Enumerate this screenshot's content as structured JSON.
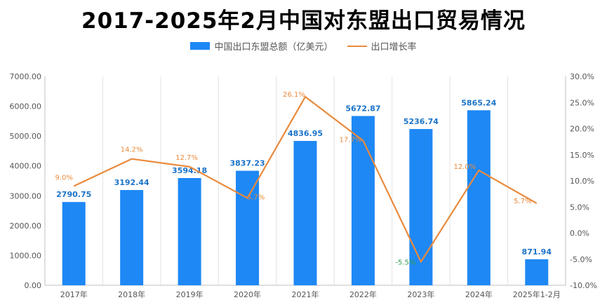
{
  "chart_data": {
    "type": "bar",
    "title": "2017-2025年2月中国对东盟出口贸易情况",
    "categories": [
      "2017年",
      "2018年",
      "2019年",
      "2020年",
      "2021年",
      "2022年",
      "2023年",
      "2024年",
      "2025年1-2月"
    ],
    "series": [
      {
        "name": "中国出口东盟总额（亿美元）",
        "type": "bar",
        "axis": "left",
        "color": "#1e88f5",
        "values": [
          2790.75,
          3192.44,
          3594.18,
          3837.23,
          4836.95,
          5672.87,
          5236.74,
          5865.24,
          871.94
        ],
        "labels": [
          "2790.75",
          "3192.44",
          "3594.18",
          "3837.23",
          "4836.95",
          "5672.87",
          "5236.74",
          "5865.24",
          "871.94"
        ]
      },
      {
        "name": "出口增长率",
        "type": "line",
        "axis": "right",
        "color": "#e98a3c",
        "values": [
          9.0,
          14.2,
          12.7,
          6.7,
          26.1,
          17.7,
          -5.5,
          12.0,
          5.7
        ],
        "labels": [
          "9.0%",
          "14.2%",
          "12.7%",
          "6.7%",
          "26.1%",
          "17.7%",
          "-5.5%",
          "12.0%",
          "5.7%"
        ]
      }
    ],
    "y_left": {
      "ylim": [
        0,
        7000
      ],
      "ticks": [
        0,
        1000,
        2000,
        3000,
        4000,
        5000,
        6000,
        7000
      ],
      "tick_labels": [
        "0.00",
        "1000.00",
        "2000.00",
        "3000.00",
        "4000.00",
        "5000.00",
        "6000.00",
        "7000.00"
      ]
    },
    "y_right": {
      "ylim": [
        -10,
        30
      ],
      "ticks": [
        -10,
        -5,
        0,
        5,
        10,
        15,
        20,
        25,
        30
      ],
      "tick_labels": [
        "-10.0%",
        "-5.0%",
        "0.0%",
        "5.0%",
        "10.0%",
        "15.0%",
        "20.0%",
        "25.0%",
        "30.0%"
      ]
    },
    "negative_label_color": "#2e9e4f",
    "gridlines": "vertical",
    "legend": "top-center"
  }
}
